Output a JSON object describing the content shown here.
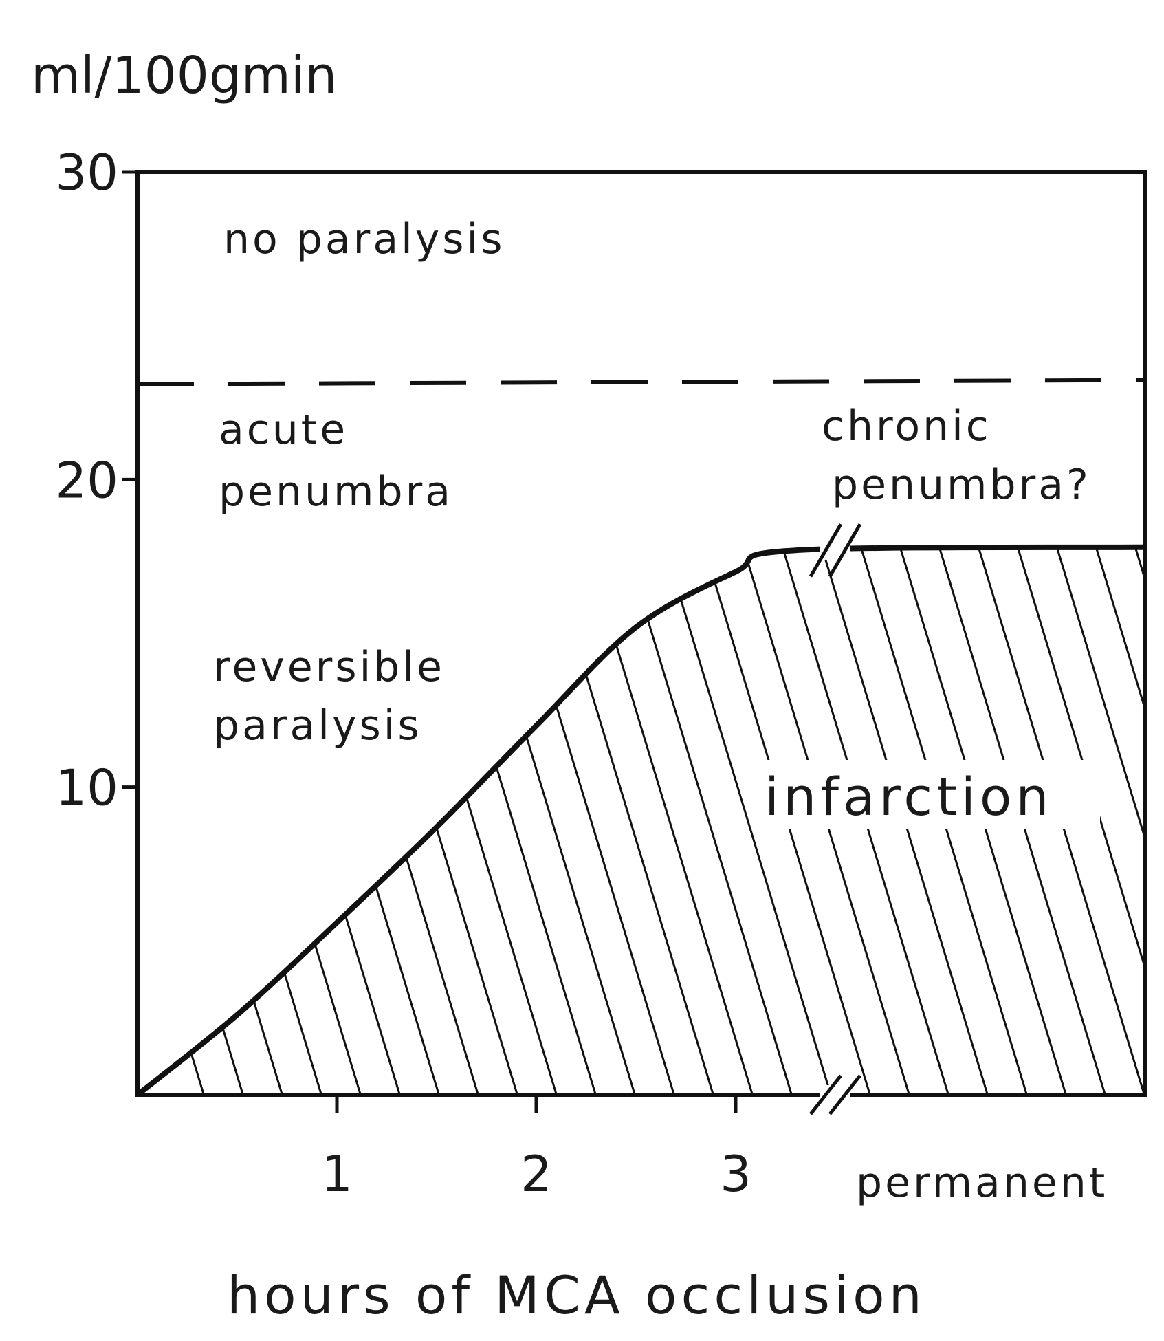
{
  "chart_data": {
    "type": "area",
    "title": "",
    "ylabel": "ml/100gmin",
    "xlabel": "hours of MCA occlusion",
    "ylim": [
      0,
      30
    ],
    "yticks": [
      {
        "value": 10,
        "label": "10"
      },
      {
        "value": 20,
        "label": "20"
      },
      {
        "value": 30,
        "label": "30"
      }
    ],
    "xticks": [
      {
        "value": 1,
        "label": "1"
      },
      {
        "value": 2,
        "label": "2"
      },
      {
        "value": 3,
        "label": "3"
      }
    ],
    "x_end_label": "permanent",
    "x_axis_break": true,
    "series": [
      {
        "fill": "diagonal-hatch",
        "x": [
          0,
          0.5,
          1,
          1.5,
          2,
          2.5,
          3,
          3.3,
          "permanent"
        ],
        "values": [
          0,
          2.6,
          5.6,
          8.7,
          12.0,
          15.2,
          17.0,
          17.7,
          17.8
        ]
      }
    ],
    "threshold_line": {
      "value": 23.1,
      "style": "dashed"
    },
    "regions": [
      {
        "lines": [
          "no paralysis"
        ]
      },
      {
        "lines": [
          "acute",
          "penumbra"
        ]
      },
      {
        "lines": [
          "reversible",
          "paralysis"
        ]
      },
      {
        "lines": [
          "chronic",
          "penumbra?"
        ]
      },
      {
        "lines": [
          "infarction"
        ]
      }
    ]
  }
}
